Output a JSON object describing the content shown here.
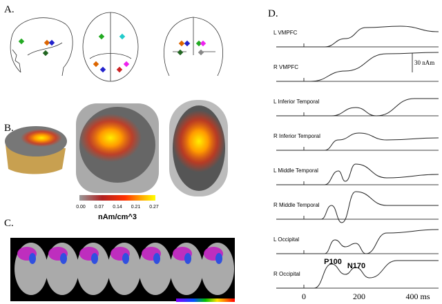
{
  "panels": {
    "a": {
      "label": "A."
    },
    "b": {
      "label": "B.",
      "colorbar": {
        "ticks": [
          "0.00",
          "0.07",
          "0.14",
          "0.21",
          "0.27"
        ],
        "unit": "nAm/cm^3"
      }
    },
    "c": {
      "label": "C."
    },
    "d": {
      "label": "D.",
      "traces": [
        "L VMPFC",
        "R VMPFC",
        "L Inferior Temporal",
        "R Inferior Temporal",
        "L Middle Temporal",
        "R Middle Temporal",
        "L Occipital",
        "R Occipital"
      ],
      "scale": "30 nAm",
      "x_ticks": [
        "0",
        "200",
        "400 ms"
      ],
      "peaks": [
        "P100",
        "N170"
      ]
    }
  }
}
